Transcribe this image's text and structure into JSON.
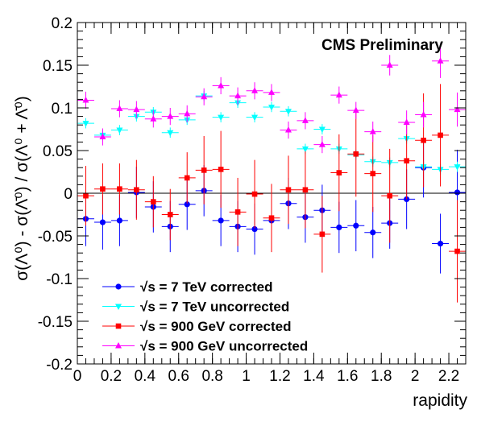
{
  "chart_data": {
    "type": "scatter",
    "title": "",
    "annotation": "CMS Preliminary",
    "xlabel": "rapidity",
    "ylabel": "σ(Λ⁰) - σ(Λ̄⁰) / σ(Λ⁰ + Λ̄⁰)",
    "xlim": [
      0,
      2.3
    ],
    "ylim": [
      -0.2,
      0.2
    ],
    "x_ticks": [
      "0",
      "0.2",
      "0.4",
      "0.6",
      "0.8",
      "1",
      "1.2",
      "1.4",
      "1.6",
      "1.8",
      "2",
      "2.2"
    ],
    "y_ticks": [
      "-0.2",
      "-0.15",
      "-0.1",
      "-0.05",
      "0",
      "0.05",
      "0.1",
      "0.15",
      "0.2"
    ],
    "grid": false,
    "legend_position": "bottom-left",
    "zero_line": true,
    "series": [
      {
        "name": "√s = 7 TeV corrected",
        "color": "#0000ff",
        "marker": "circle",
        "points": [
          {
            "x": 0.05,
            "y": -0.03,
            "err": 0.032
          },
          {
            "x": 0.15,
            "y": -0.034,
            "err": 0.032
          },
          {
            "x": 0.25,
            "y": -0.032,
            "err": 0.03
          },
          {
            "x": 0.35,
            "y": 0.001,
            "err": 0.03
          },
          {
            "x": 0.45,
            "y": -0.016,
            "err": 0.03
          },
          {
            "x": 0.55,
            "y": -0.039,
            "err": 0.03
          },
          {
            "x": 0.65,
            "y": -0.013,
            "err": 0.03
          },
          {
            "x": 0.75,
            "y": 0.003,
            "err": 0.03
          },
          {
            "x": 0.85,
            "y": -0.032,
            "err": 0.03
          },
          {
            "x": 0.95,
            "y": -0.039,
            "err": 0.03
          },
          {
            "x": 1.05,
            "y": -0.042,
            "err": 0.03
          },
          {
            "x": 1.15,
            "y": -0.032,
            "err": 0.03
          },
          {
            "x": 1.25,
            "y": -0.012,
            "err": 0.03
          },
          {
            "x": 1.35,
            "y": -0.028,
            "err": 0.03
          },
          {
            "x": 1.45,
            "y": -0.02,
            "err": 0.03
          },
          {
            "x": 1.55,
            "y": -0.04,
            "err": 0.03
          },
          {
            "x": 1.65,
            "y": -0.038,
            "err": 0.03
          },
          {
            "x": 1.75,
            "y": -0.046,
            "err": 0.03
          },
          {
            "x": 1.85,
            "y": -0.035,
            "err": 0.03
          },
          {
            "x": 1.95,
            "y": -0.007,
            "err": 0.035
          },
          {
            "x": 2.05,
            "y": 0.03,
            "err": 0.035
          },
          {
            "x": 2.15,
            "y": -0.059,
            "err": 0.035
          },
          {
            "x": 2.25,
            "y": 0.001,
            "err": 0.05
          }
        ]
      },
      {
        "name": "√s = 7 TeV uncorrected",
        "color": "#00ffff",
        "marker": "triangle-down",
        "points": [
          {
            "x": 0.05,
            "y": 0.082,
            "err": 0.006
          },
          {
            "x": 0.15,
            "y": 0.068,
            "err": 0.006
          },
          {
            "x": 0.25,
            "y": 0.074,
            "err": 0.006
          },
          {
            "x": 0.35,
            "y": 0.09,
            "err": 0.006
          },
          {
            "x": 0.45,
            "y": 0.095,
            "err": 0.006
          },
          {
            "x": 0.55,
            "y": 0.071,
            "err": 0.006
          },
          {
            "x": 0.65,
            "y": 0.086,
            "err": 0.006
          },
          {
            "x": 0.75,
            "y": 0.114,
            "err": 0.006
          },
          {
            "x": 0.85,
            "y": 0.089,
            "err": 0.006
          },
          {
            "x": 0.95,
            "y": 0.106,
            "err": 0.006
          },
          {
            "x": 1.05,
            "y": 0.089,
            "err": 0.006
          },
          {
            "x": 1.15,
            "y": 0.101,
            "err": 0.006
          },
          {
            "x": 1.25,
            "y": 0.096,
            "err": 0.006
          },
          {
            "x": 1.35,
            "y": 0.052,
            "err": 0.006
          },
          {
            "x": 1.45,
            "y": 0.075,
            "err": 0.006
          },
          {
            "x": 1.55,
            "y": 0.052,
            "err": 0.006
          },
          {
            "x": 1.65,
            "y": 0.045,
            "err": 0.006
          },
          {
            "x": 1.75,
            "y": 0.037,
            "err": 0.006
          },
          {
            "x": 1.85,
            "y": 0.036,
            "err": 0.006
          },
          {
            "x": 1.95,
            "y": 0.064,
            "err": 0.006
          },
          {
            "x": 2.05,
            "y": 0.031,
            "err": 0.006
          },
          {
            "x": 2.15,
            "y": 0.028,
            "err": 0.006
          },
          {
            "x": 2.25,
            "y": 0.031,
            "err": 0.006
          }
        ]
      },
      {
        "name": "√s = 900 GeV corrected",
        "color": "#ff0000",
        "marker": "square",
        "points": [
          {
            "x": 0.05,
            "y": -0.003,
            "err": 0.035
          },
          {
            "x": 0.15,
            "y": 0.005,
            "err": 0.03
          },
          {
            "x": 0.25,
            "y": 0.005,
            "err": 0.03
          },
          {
            "x": 0.35,
            "y": 0.004,
            "err": 0.035
          },
          {
            "x": 0.45,
            "y": -0.01,
            "err": 0.03
          },
          {
            "x": 0.55,
            "y": -0.025,
            "err": 0.03
          },
          {
            "x": 0.65,
            "y": 0.018,
            "err": 0.03
          },
          {
            "x": 0.75,
            "y": 0.027,
            "err": 0.04
          },
          {
            "x": 0.85,
            "y": 0.028,
            "err": 0.045
          },
          {
            "x": 0.95,
            "y": -0.022,
            "err": 0.04
          },
          {
            "x": 1.05,
            "y": -0.001,
            "err": 0.04
          },
          {
            "x": 1.15,
            "y": -0.029,
            "err": 0.04
          },
          {
            "x": 1.25,
            "y": 0.004,
            "err": 0.04
          },
          {
            "x": 1.35,
            "y": 0.004,
            "err": 0.045
          },
          {
            "x": 1.45,
            "y": -0.048,
            "err": 0.045
          },
          {
            "x": 1.55,
            "y": 0.024,
            "err": 0.045
          },
          {
            "x": 1.65,
            "y": 0.046,
            "err": 0.05
          },
          {
            "x": 1.75,
            "y": 0.023,
            "err": 0.045
          },
          {
            "x": 1.85,
            "y": -0.003,
            "err": 0.055
          },
          {
            "x": 1.95,
            "y": 0.038,
            "err": 0.045
          },
          {
            "x": 2.05,
            "y": 0.062,
            "err": 0.055
          },
          {
            "x": 2.15,
            "y": 0.068,
            "err": 0.06
          },
          {
            "x": 2.25,
            "y": -0.068,
            "err": 0.06
          }
        ]
      },
      {
        "name": "√s = 900 GeV uncorrected",
        "color": "#ff00ff",
        "marker": "triangle-up",
        "points": [
          {
            "x": 0.05,
            "y": 0.109,
            "err": 0.01
          },
          {
            "x": 0.15,
            "y": 0.066,
            "err": 0.01
          },
          {
            "x": 0.25,
            "y": 0.099,
            "err": 0.01
          },
          {
            "x": 0.35,
            "y": 0.098,
            "err": 0.01
          },
          {
            "x": 0.45,
            "y": 0.087,
            "err": 0.01
          },
          {
            "x": 0.55,
            "y": 0.09,
            "err": 0.01
          },
          {
            "x": 0.65,
            "y": 0.093,
            "err": 0.01
          },
          {
            "x": 0.75,
            "y": 0.113,
            "err": 0.01
          },
          {
            "x": 0.85,
            "y": 0.126,
            "err": 0.01
          },
          {
            "x": 0.95,
            "y": 0.114,
            "err": 0.01
          },
          {
            "x": 1.05,
            "y": 0.12,
            "err": 0.01
          },
          {
            "x": 1.15,
            "y": 0.118,
            "err": 0.01
          },
          {
            "x": 1.25,
            "y": 0.074,
            "err": 0.01
          },
          {
            "x": 1.35,
            "y": 0.085,
            "err": 0.01
          },
          {
            "x": 1.45,
            "y": 0.057,
            "err": 0.01
          },
          {
            "x": 1.55,
            "y": 0.115,
            "err": 0.01
          },
          {
            "x": 1.65,
            "y": 0.097,
            "err": 0.01
          },
          {
            "x": 1.75,
            "y": 0.072,
            "err": 0.012
          },
          {
            "x": 1.85,
            "y": 0.15,
            "err": 0.012
          },
          {
            "x": 1.95,
            "y": 0.083,
            "err": 0.014
          },
          {
            "x": 2.05,
            "y": 0.092,
            "err": 0.015
          },
          {
            "x": 2.15,
            "y": 0.155,
            "err": 0.02
          },
          {
            "x": 2.25,
            "y": 0.098,
            "err": 0.02
          }
        ]
      }
    ]
  }
}
